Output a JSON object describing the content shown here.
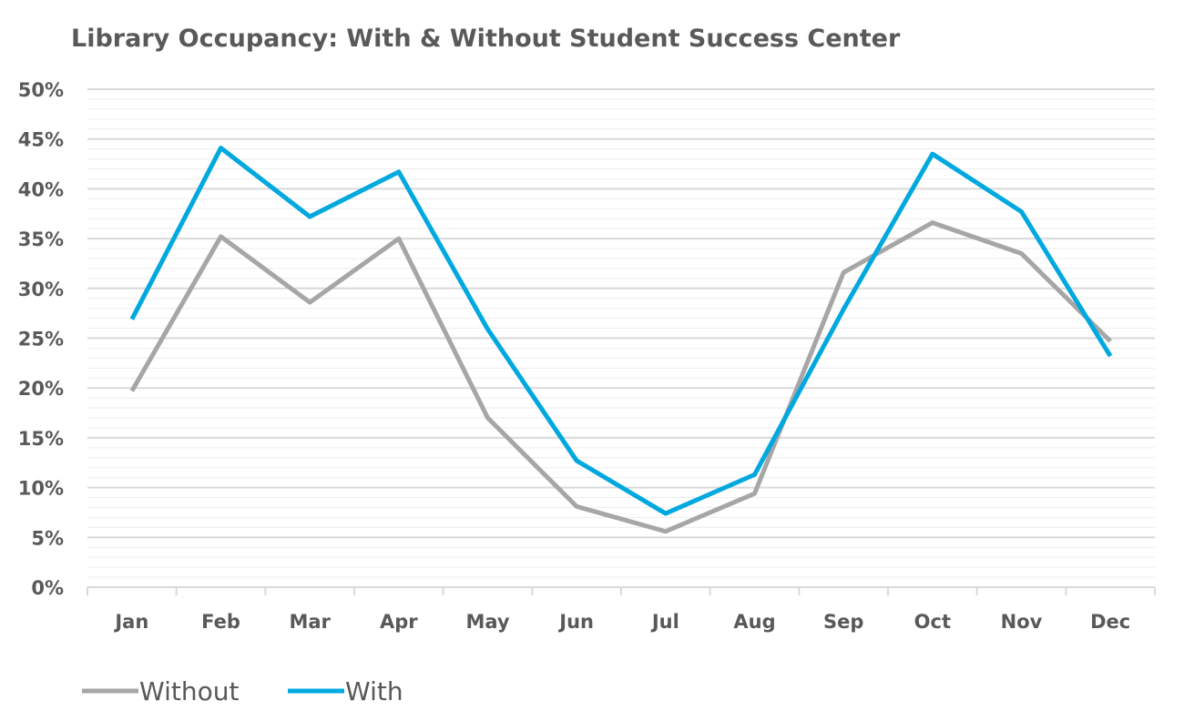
{
  "chart_data": {
    "type": "line",
    "title": "Library Occupancy: With & Without Student Success Center",
    "xlabel": "",
    "ylabel": "",
    "categories": [
      "Jan",
      "Feb",
      "Mar",
      "Apr",
      "May",
      "Jun",
      "Jul",
      "Aug",
      "Sep",
      "Oct",
      "Nov",
      "Dec"
    ],
    "ylim": [
      0,
      50
    ],
    "yticks": [
      "0%",
      "5%",
      "10%",
      "15%",
      "20%",
      "25%",
      "30%",
      "35%",
      "40%",
      "45%",
      "50%"
    ],
    "ytick_values": [
      0,
      5,
      10,
      15,
      20,
      25,
      30,
      35,
      40,
      45,
      50
    ],
    "grid": true,
    "legend_position": "bottom-left",
    "series": [
      {
        "name": "Without",
        "color": "#A6A6A6",
        "values": [
          19.7,
          35.2,
          28.6,
          35.0,
          17.0,
          8.1,
          5.6,
          9.4,
          31.6,
          36.6,
          33.5,
          24.7
        ]
      },
      {
        "name": "With",
        "color": "#00A8E0",
        "values": [
          26.9,
          44.1,
          37.2,
          41.7,
          25.9,
          12.7,
          7.4,
          11.3,
          27.9,
          43.5,
          37.7,
          23.2
        ]
      }
    ]
  }
}
